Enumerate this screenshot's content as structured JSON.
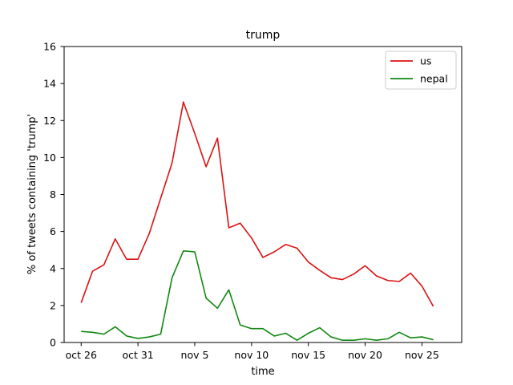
{
  "chart_data": {
    "type": "line",
    "title": "trump",
    "xlabel": "time",
    "ylabel": "% of tweets containing 'trump'",
    "ylim": [
      0,
      16
    ],
    "xlim": [
      -1.5,
      33.5
    ],
    "x": [
      0,
      1,
      2,
      3,
      4,
      5,
      6,
      7,
      8,
      9,
      10,
      11,
      12,
      13,
      14,
      15,
      16,
      17,
      18,
      19,
      20,
      21,
      22,
      23,
      24,
      25,
      26,
      27,
      28,
      29,
      30,
      31
    ],
    "x_ticks": [
      {
        "pos": 0,
        "label": "oct 26"
      },
      {
        "pos": 5,
        "label": "oct 31"
      },
      {
        "pos": 10,
        "label": "nov 5"
      },
      {
        "pos": 15,
        "label": "nov 10"
      },
      {
        "pos": 20,
        "label": "nov 15"
      },
      {
        "pos": 25,
        "label": "nov 20"
      },
      {
        "pos": 30,
        "label": "nov 25"
      }
    ],
    "y_ticks": [
      0,
      2,
      4,
      6,
      8,
      10,
      12,
      14,
      16
    ],
    "legend_position": "top-right",
    "grid": false,
    "series": [
      {
        "name": "us",
        "color": "#dd1111",
        "values": [
          2.15,
          3.85,
          4.2,
          5.6,
          4.5,
          4.5,
          5.9,
          7.8,
          9.7,
          13.0,
          11.3,
          9.5,
          11.05,
          6.2,
          6.45,
          5.65,
          4.6,
          4.9,
          5.3,
          5.1,
          4.35,
          3.9,
          3.5,
          3.4,
          3.7,
          4.15,
          3.6,
          3.35,
          3.3,
          3.75,
          3.05,
          1.95
        ]
      },
      {
        "name": "nepal",
        "color": "#118811",
        "values": [
          0.6,
          0.55,
          0.45,
          0.85,
          0.35,
          0.22,
          0.3,
          0.45,
          3.5,
          4.95,
          4.9,
          2.4,
          1.85,
          2.85,
          0.95,
          0.75,
          0.75,
          0.35,
          0.5,
          0.12,
          0.5,
          0.8,
          0.3,
          0.12,
          0.12,
          0.2,
          0.12,
          0.2,
          0.55,
          0.25,
          0.3,
          0.15
        ]
      }
    ]
  }
}
